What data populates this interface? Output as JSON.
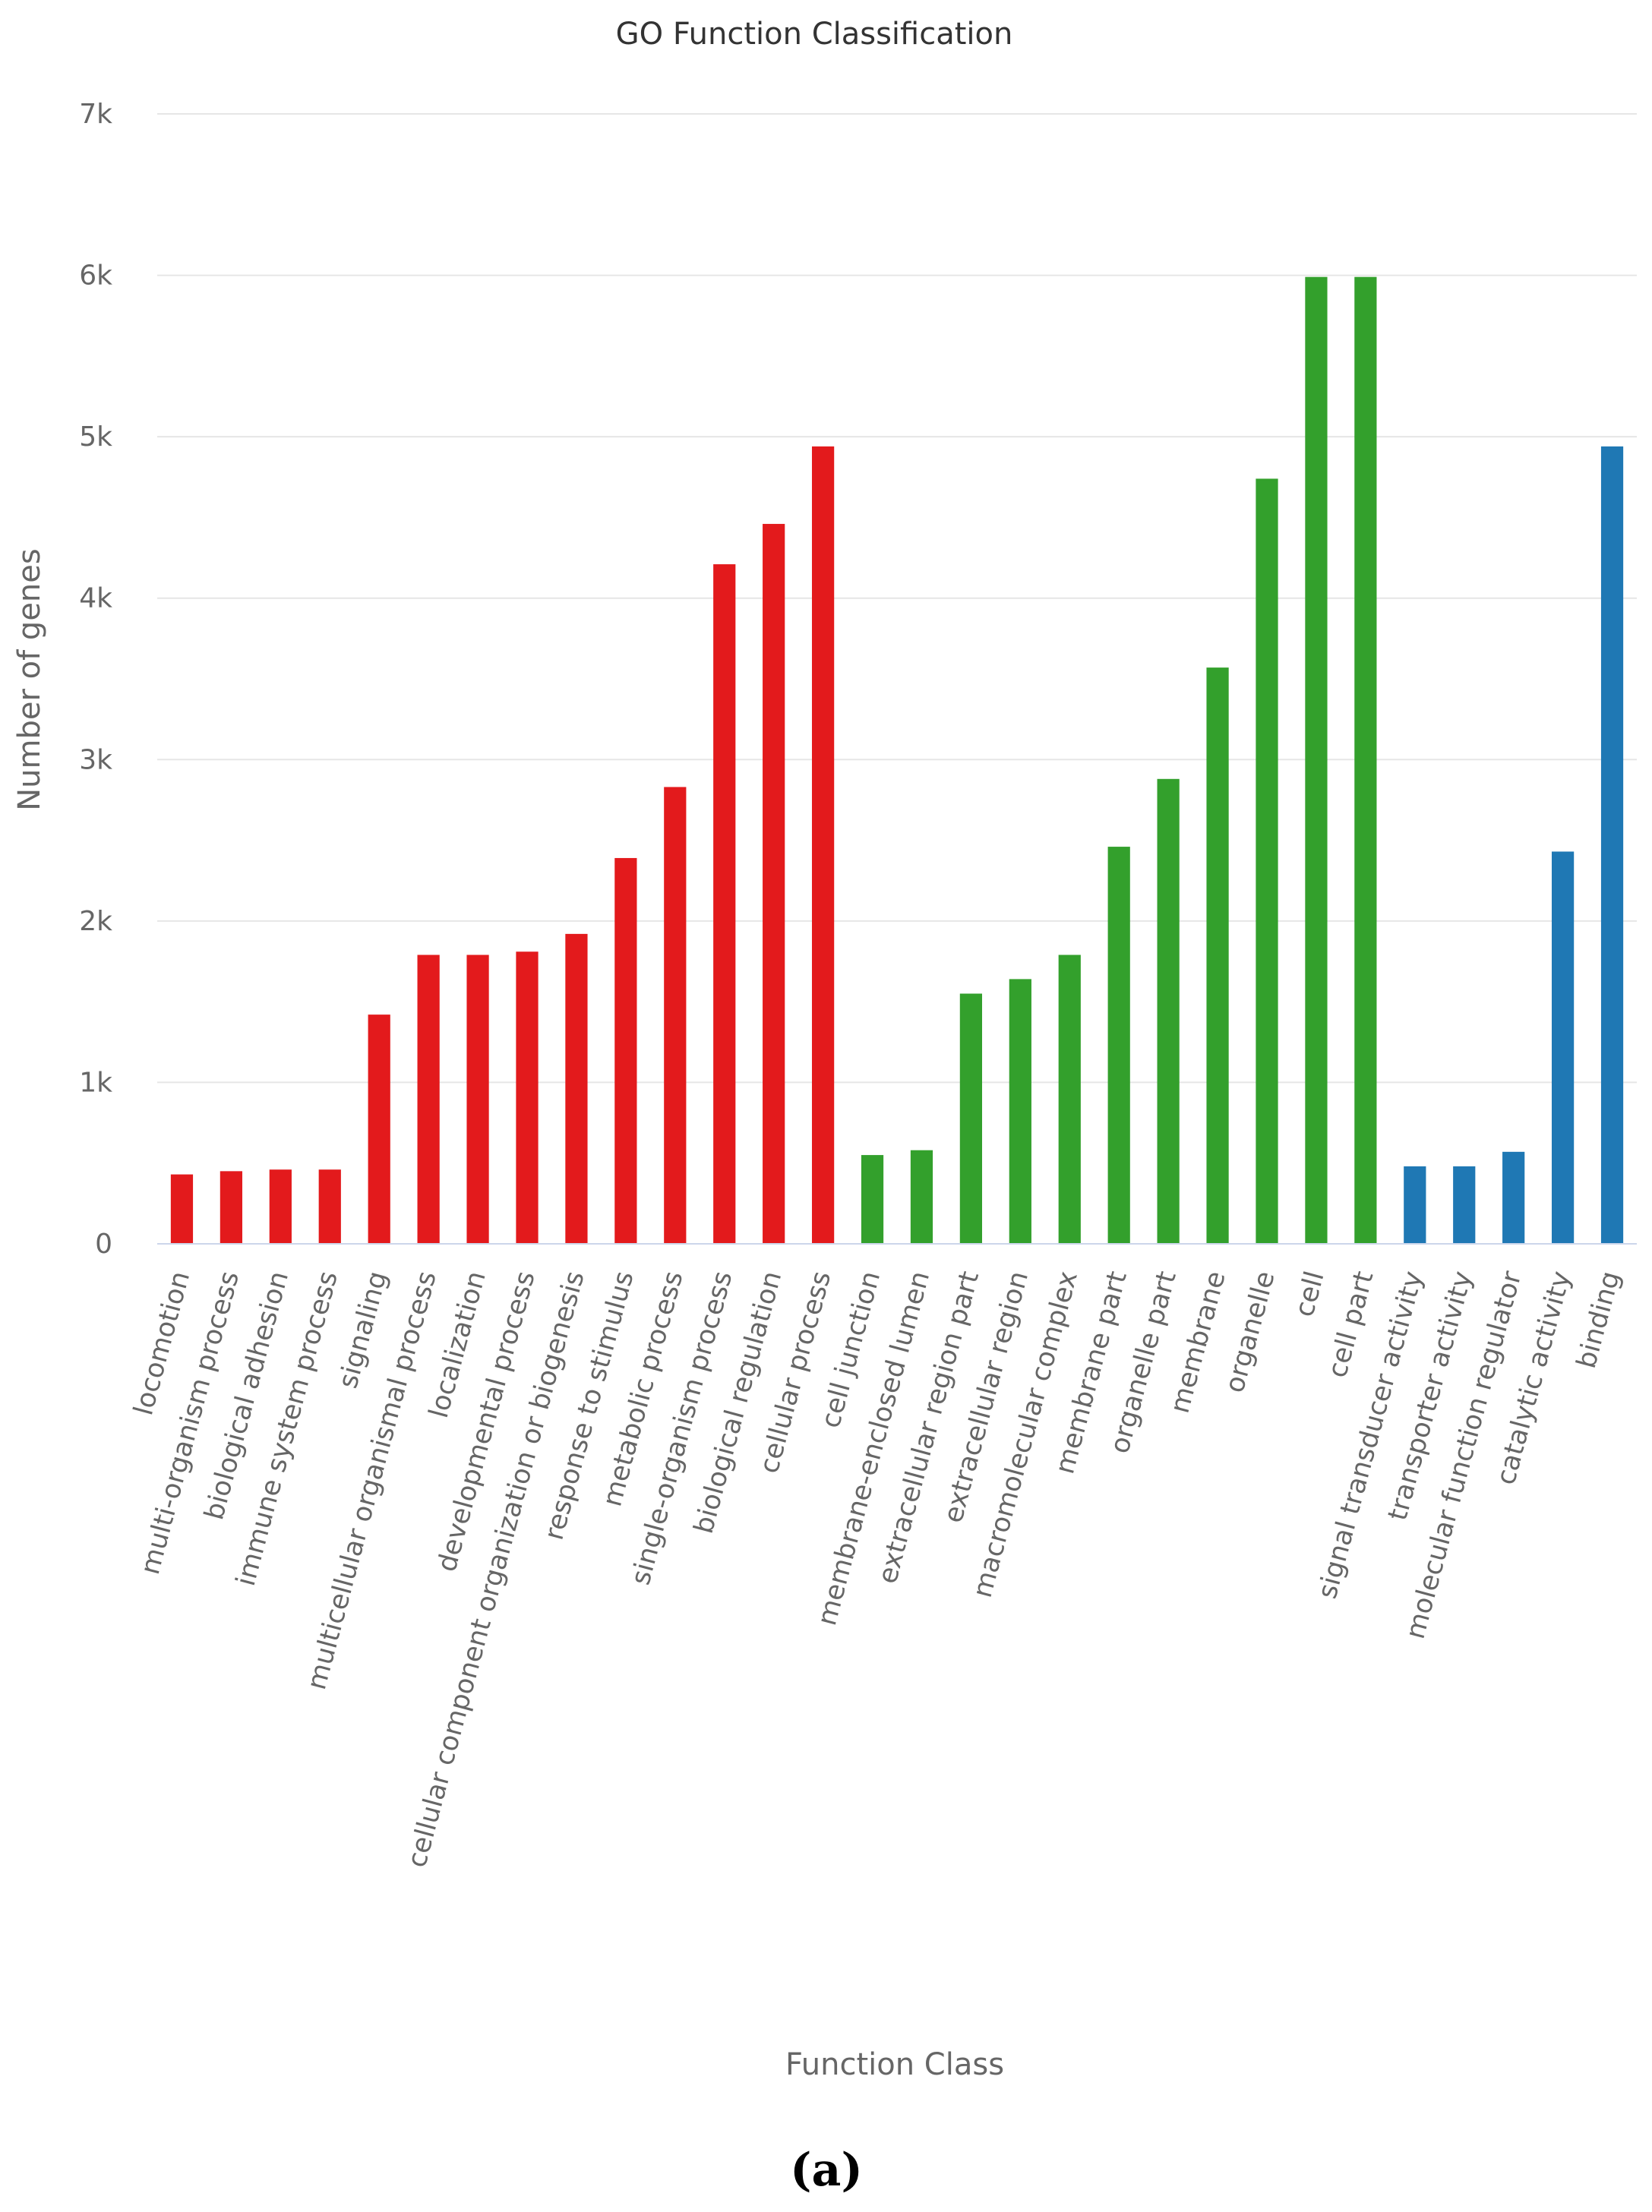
{
  "chart_data": {
    "type": "bar",
    "title": "GO Function Classification",
    "xlabel": "Function Class",
    "ylabel": "Number of genes",
    "ylim": [
      0,
      7000
    ],
    "yticks": [
      "0",
      "1k",
      "2k",
      "3k",
      "4k",
      "5k",
      "6k",
      "7k"
    ],
    "grid": true,
    "legend": "none",
    "categories": [
      "locomotion",
      "multi-organism process",
      "biological adhesion",
      "immune system process",
      "signaling",
      "multicellular organismal process",
      "localization",
      "developmental process",
      "cellular component organization or biogenesis",
      "response to stimulus",
      "metabolic process",
      "single-organism process",
      "biological regulation",
      "cellular process",
      "cell junction",
      "membrane-enclosed lumen",
      "extracellular region part",
      "extracellular region",
      "macromolecular complex",
      "membrane part",
      "organelle part",
      "membrane",
      "organelle",
      "cell",
      "cell part",
      "signal transducer activity",
      "transporter activity",
      "molecular function regulator",
      "catalytic activity",
      "binding"
    ],
    "values": [
      430,
      450,
      460,
      460,
      1420,
      1790,
      1790,
      1810,
      1920,
      2390,
      2830,
      4210,
      4460,
      4940,
      550,
      580,
      1550,
      1640,
      1790,
      2460,
      2880,
      3570,
      4740,
      5990,
      5990,
      480,
      480,
      570,
      2430,
      4940
    ],
    "bar_colors": [
      "#e31a1c",
      "#e31a1c",
      "#e31a1c",
      "#e31a1c",
      "#e31a1c",
      "#e31a1c",
      "#e31a1c",
      "#e31a1c",
      "#e31a1c",
      "#e31a1c",
      "#e31a1c",
      "#e31a1c",
      "#e31a1c",
      "#e31a1c",
      "#33a02c",
      "#33a02c",
      "#33a02c",
      "#33a02c",
      "#33a02c",
      "#33a02c",
      "#33a02c",
      "#33a02c",
      "#33a02c",
      "#33a02c",
      "#33a02c",
      "#1f78b4",
      "#1f78b4",
      "#1f78b4",
      "#1f78b4",
      "#1f78b4"
    ]
  },
  "caption": "(a)"
}
